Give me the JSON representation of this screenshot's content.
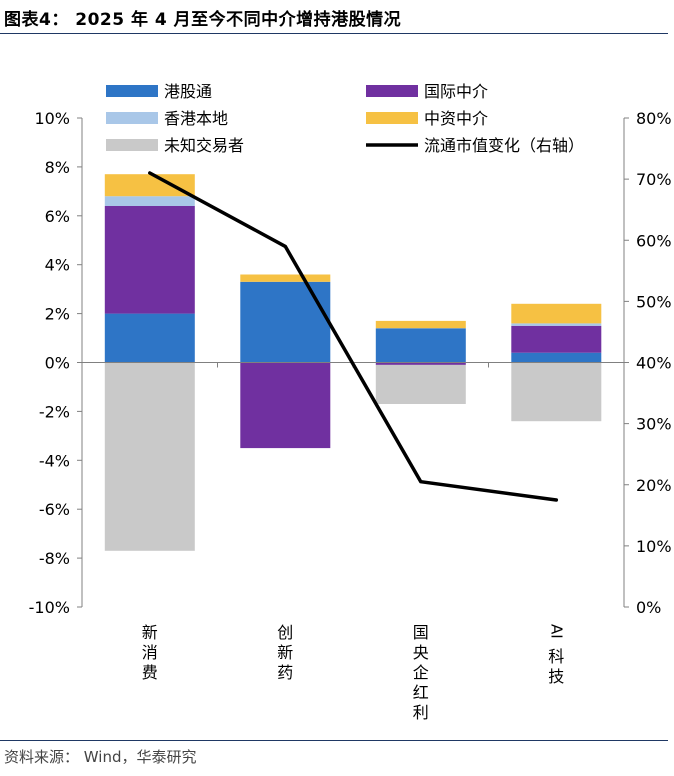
{
  "title": "图表4：  2025 年 4 月至今不同中介增持港股情况",
  "source": "资料来源：  Wind，华泰研究",
  "chart_data": {
    "type": "bar",
    "stacked": true,
    "categories": [
      "新消费",
      "创新药",
      "国央企红利",
      "AI科技"
    ],
    "left_axis": {
      "ylim": [
        -10,
        10
      ],
      "ticks": [
        "10%",
        "8%",
        "6%",
        "4%",
        "2%",
        "0%",
        "-2%",
        "-4%",
        "-6%",
        "-8%",
        "-10%"
      ]
    },
    "right_axis": {
      "ylim": [
        0,
        80
      ],
      "ticks": [
        "80%",
        "70%",
        "60%",
        "50%",
        "40%",
        "30%",
        "20%",
        "10%",
        "0%"
      ]
    },
    "series": [
      {
        "name": "港股通",
        "color": "#2e75c6",
        "values": [
          2.0,
          3.3,
          1.4,
          0.4
        ]
      },
      {
        "name": "国际中介",
        "color": "#7030a0",
        "values": [
          4.4,
          -3.5,
          -0.1,
          1.1
        ]
      },
      {
        "name": "香港本地",
        "color": "#a9c7e8",
        "values": [
          0.4,
          0.0,
          0.0,
          0.1
        ]
      },
      {
        "name": "中资中介",
        "color": "#f6c143",
        "values": [
          0.9,
          0.3,
          0.3,
          0.8
        ]
      },
      {
        "name": "未知交易者",
        "color": "#c9c9c9",
        "values": [
          -7.7,
          0.0,
          -1.6,
          -2.4
        ]
      }
    ],
    "line": {
      "name": "流通市值变化（右轴）",
      "color": "#000000",
      "axis": "right",
      "values": [
        71,
        59,
        20.5,
        17.5
      ]
    },
    "legend": {
      "placement": "top",
      "columns": 2
    }
  }
}
